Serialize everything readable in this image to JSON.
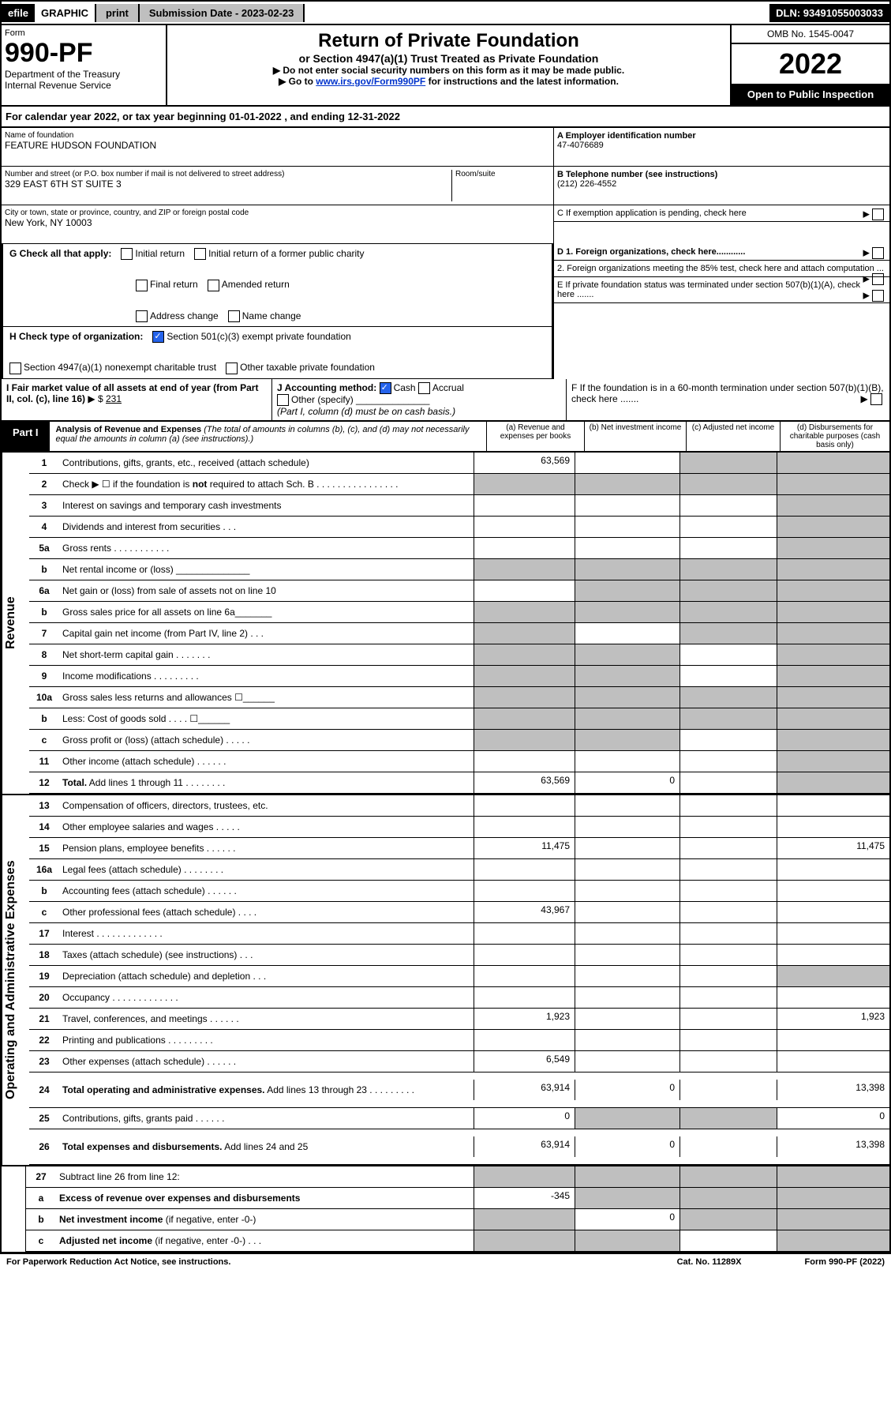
{
  "top": {
    "efile": "efile",
    "graphic": "GRAPHIC",
    "print": "print",
    "sub_label": "Submission Date - 2023-02-23",
    "dln": "DLN: 93491055003033"
  },
  "header": {
    "form": "Form",
    "form_num": "990-PF",
    "dept": "Department of the Treasury",
    "irs": "Internal Revenue Service",
    "title": "Return of Private Foundation",
    "sub": "or Section 4947(a)(1) Trust Treated as Private Foundation",
    "note1": "▶ Do not enter social security numbers on this form as it may be made public.",
    "note2_pre": "▶ Go to ",
    "note2_link": "www.irs.gov/Form990PF",
    "note2_post": " for instructions and the latest information.",
    "omb": "OMB No. 1545-0047",
    "year": "2022",
    "open": "Open to Public Inspection"
  },
  "calyear": "For calendar year 2022, or tax year beginning 01-01-2022                          , and ending 12-31-2022",
  "left": {
    "name_label": "Name of foundation",
    "name": "FEATURE HUDSON FOUNDATION",
    "addr_label": "Number and street (or P.O. box number if mail is not delivered to street address)",
    "addr": "329 EAST 6TH ST SUITE 3",
    "room_label": "Room/suite",
    "city_label": "City or town, state or province, country, and ZIP or foreign postal code",
    "city": "New York, NY  10003"
  },
  "right": {
    "a_label": "A Employer identification number",
    "a_val": "47-4076689",
    "b_label": "B Telephone number (see instructions)",
    "b_val": "(212) 226-4552",
    "c_label": "C If exemption application is pending, check here",
    "d1": "D 1. Foreign organizations, check here............",
    "d2": "2. Foreign organizations meeting the 85% test, check here and attach computation ...",
    "e": "E  If private foundation status was terminated under section 507(b)(1)(A), check here .......",
    "f": "F  If the foundation is in a 60-month termination under section 507(b)(1)(B), check here ......."
  },
  "g": {
    "label": "G Check all that apply:",
    "initial": "Initial return",
    "initial_former": "Initial return of a former public charity",
    "final": "Final return",
    "amended": "Amended return",
    "addr_change": "Address change",
    "name_change": "Name change"
  },
  "h": {
    "label": "H Check type of organization:",
    "c3": "Section 501(c)(3) exempt private foundation",
    "trust": "Section 4947(a)(1) nonexempt charitable trust",
    "other": "Other taxable private foundation"
  },
  "i": {
    "label": "I Fair market value of all assets at end of year (from Part II, col. (c), line 16)",
    "arrow": "▶ $",
    "val": "231"
  },
  "j": {
    "label": "J Accounting method:",
    "cash": "Cash",
    "accrual": "Accrual",
    "other": "Other (specify)",
    "note": "(Part I, column (d) must be on cash basis.)"
  },
  "part1": {
    "label": "Part I",
    "title": "Analysis of Revenue and Expenses",
    "desc": " (The total of amounts in columns (b), (c), and (d) may not necessarily equal the amounts in column (a) (see instructions).)",
    "col_a": "(a)  Revenue and expenses per books",
    "col_b": "(b)  Net investment income",
    "col_c": "(c)  Adjusted net income",
    "col_d": "(d)  Disbursements for charitable purposes (cash basis only)"
  },
  "sides": {
    "revenue": "Revenue",
    "expenses": "Operating and Administrative Expenses"
  },
  "rows": [
    {
      "n": "1",
      "d": "Contributions, gifts, grants, etc., received (attach schedule)",
      "a": "63,569",
      "shade_b": false,
      "shade_c": true,
      "shade_d": true
    },
    {
      "n": "2",
      "d": "Check ▶ ☐ if the foundation is <b>not</b> required to attach Sch. B   .  .  .  .  .  .  .  .  .  .  .  .  .  .  .  .",
      "a": "",
      "shade_a": true,
      "shade_b": true,
      "shade_c": true,
      "shade_d": true
    },
    {
      "n": "3",
      "d": "Interest on savings and temporary cash investments",
      "shade_d": true
    },
    {
      "n": "4",
      "d": "Dividends and interest from securities    .    .    .",
      "shade_d": true
    },
    {
      "n": "5a",
      "d": "Gross rents    .    .    .    .    .    .    .    .    .    .    .",
      "shade_d": true
    },
    {
      "n": "b",
      "d": "Net rental income or (loss) ______________",
      "shade_a": true,
      "shade_b": true,
      "shade_c": true,
      "shade_d": true
    },
    {
      "n": "6a",
      "d": "Net gain or (loss) from sale of assets not on line 10",
      "shade_b": true,
      "shade_c": true,
      "shade_d": true
    },
    {
      "n": "b",
      "d": "Gross sales price for all assets on line 6a_______",
      "shade_a": true,
      "shade_b": true,
      "shade_c": true,
      "shade_d": true
    },
    {
      "n": "7",
      "d": "Capital gain net income (from Part IV, line 2)    .    .    .",
      "shade_a": true,
      "shade_c": true,
      "shade_d": true
    },
    {
      "n": "8",
      "d": "Net short-term capital gain    .    .    .    .    .    .    .",
      "shade_a": true,
      "shade_b": true,
      "shade_d": true
    },
    {
      "n": "9",
      "d": "Income modifications  .    .    .    .    .    .    .    .    .",
      "shade_a": true,
      "shade_b": true,
      "shade_d": true
    },
    {
      "n": "10a",
      "d": "Gross sales less returns and allowances  ☐______",
      "shade_a": true,
      "shade_b": true,
      "shade_c": true,
      "shade_d": true
    },
    {
      "n": "b",
      "d": "Less: Cost of goods sold    .    .    .    .    ☐______",
      "shade_a": true,
      "shade_b": true,
      "shade_c": true,
      "shade_d": true
    },
    {
      "n": "c",
      "d": "Gross profit or (loss) (attach schedule)    .    .    .    .    .",
      "shade_a": true,
      "shade_b": true,
      "shade_d": true
    },
    {
      "n": "11",
      "d": "Other income (attach schedule)     .    .    .    .    .    .",
      "shade_d": true
    },
    {
      "n": "12",
      "d": "<b>Total.</b> Add lines 1 through 11   .    .    .    .    .    .    .    .",
      "a": "63,569",
      "b": "0",
      "shade_d": true
    }
  ],
  "exp_rows": [
    {
      "n": "13",
      "d": "Compensation of officers, directors, trustees, etc."
    },
    {
      "n": "14",
      "d": "Other employee salaries and wages     .    .    .    .    ."
    },
    {
      "n": "15",
      "d": "Pension plans, employee benefits   .    .    .    .    .    .",
      "a": "11,475",
      "d_val": "11,475"
    },
    {
      "n": "16a",
      "d": "Legal fees (attach schedule)  .    .    .    .    .    .    .    ."
    },
    {
      "n": "b",
      "d": "Accounting fees (attach schedule)  .    .    .    .    .    ."
    },
    {
      "n": "c",
      "d": "Other professional fees (attach schedule)     .    .    .    .",
      "a": "43,967"
    },
    {
      "n": "17",
      "d": "Interest  .    .    .    .    .    .    .    .    .    .    .    .    ."
    },
    {
      "n": "18",
      "d": "Taxes (attach schedule) (see instructions)     .    .    ."
    },
    {
      "n": "19",
      "d": "Depreciation (attach schedule) and depletion     .    .    .",
      "shade_d": true
    },
    {
      "n": "20",
      "d": "Occupancy  .    .    .    .    .    .    .    .    .    .    .    .    ."
    },
    {
      "n": "21",
      "d": "Travel, conferences, and meetings  .    .    .    .    .    .",
      "a": "1,923",
      "d_val": "1,923"
    },
    {
      "n": "22",
      "d": "Printing and publications  .    .    .    .    .    .    .    .    ."
    },
    {
      "n": "23",
      "d": "Other expenses (attach schedule)  .    .    .    .    .    .",
      "a": "6,549"
    },
    {
      "n": "24",
      "d": "<b>Total operating and administrative expenses.</b> Add lines 13 through 23    .    .    .    .    .    .    .    .    .",
      "a": "63,914",
      "b": "0",
      "d_val": "13,398",
      "tall": true
    },
    {
      "n": "25",
      "d": "Contributions, gifts, grants paid     .    .    .    .    .    .",
      "a": "0",
      "shade_b": true,
      "shade_c": true,
      "d_val": "0"
    },
    {
      "n": "26",
      "d": "<b>Total expenses and disbursements.</b> Add lines 24 and 25",
      "a": "63,914",
      "b": "0",
      "d_val": "13,398",
      "tall": true
    }
  ],
  "final_rows": [
    {
      "n": "27",
      "d": "Subtract line 26 from line 12:",
      "shade_a": true,
      "shade_b": true,
      "shade_c": true,
      "shade_d": true
    },
    {
      "n": "a",
      "d": "<b>Excess of revenue over expenses and disbursements</b>",
      "a": "-345",
      "shade_b": true,
      "shade_c": true,
      "shade_d": true
    },
    {
      "n": "b",
      "d": "<b>Net investment income</b> (if negative, enter -0-)",
      "shade_a": true,
      "b": "0",
      "shade_c": true,
      "shade_d": true
    },
    {
      "n": "c",
      "d": "<b>Adjusted net income</b> (if negative, enter -0-)    .    .    .",
      "shade_a": true,
      "shade_b": true,
      "shade_d": true
    }
  ],
  "footer": {
    "left": "For Paperwork Reduction Act Notice, see instructions.",
    "mid": "Cat. No. 11289X",
    "right": "Form 990-PF (2022)"
  }
}
